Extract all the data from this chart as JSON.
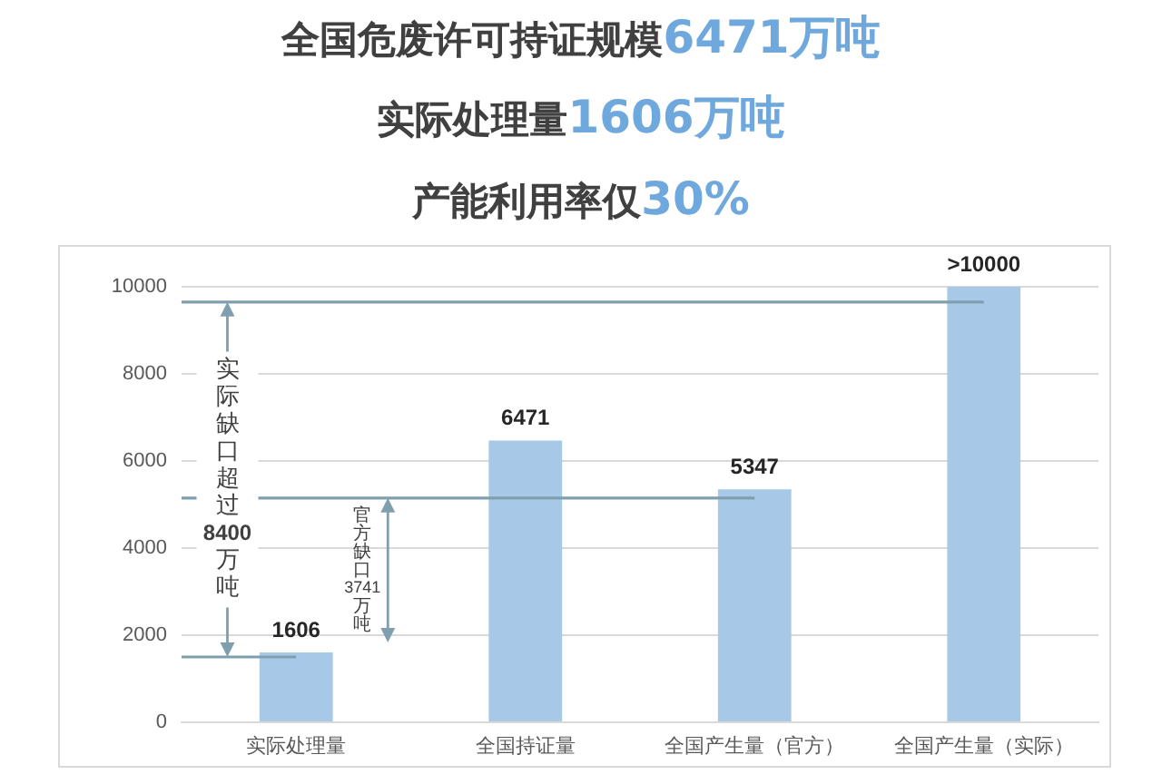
{
  "chart_data": {
    "type": "bar",
    "title": "全国危废许可持证规模6471万吨",
    "subtitle": "实际处理量1606万吨",
    "annotations": [
      "产能利用率仅30%",
      "实际缺口超过8400万吨",
      "官方缺口3741万吨"
    ],
    "categories": [
      "实际处理量",
      "全国持证量",
      "全国产生量（官方）",
      "全国产生量（实际）"
    ],
    "values": [
      1606,
      6471,
      5347,
      10000
    ],
    "color": "#a8c8e8",
    "value_labels": [
      "1606",
      "6471",
      "5347",
      ">10000"
    ],
    "ylim": [
      0,
      10000
    ],
    "yticks": [
      0,
      2000,
      4000,
      6000,
      8000,
      10000
    ],
    "grid": "y",
    "ref_lines": [
      {
        "axis": "y",
        "value": 1500,
        "color": "#7f9faf"
      },
      {
        "axis": "y",
        "value": 5150,
        "color": "#7f9faf"
      },
      {
        "axis": "y",
        "value": 9650,
        "color": "#7f9faf"
      }
    ]
  }
}
